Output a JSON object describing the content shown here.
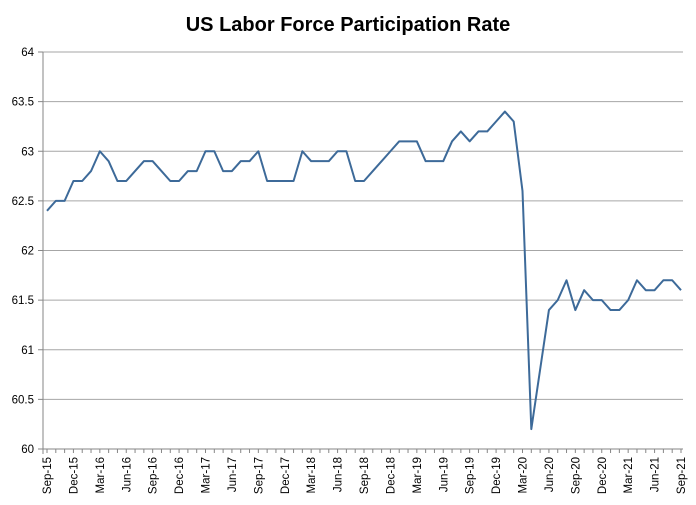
{
  "chart_data": {
    "type": "line",
    "title": "US Labor Force Participation Rate",
    "xlabel": "",
    "ylabel": "",
    "ylim": [
      60,
      64
    ],
    "yticks": [
      60,
      60.5,
      61,
      61.5,
      62,
      62.5,
      63,
      63.5,
      64
    ],
    "grid": true,
    "legend": "none",
    "colors": {
      "line": "#3d6a99",
      "grid": "#a6a6a6",
      "axis": "#868686"
    },
    "x": [
      "Sep-15",
      "Oct-15",
      "Nov-15",
      "Dec-15",
      "Jan-16",
      "Feb-16",
      "Mar-16",
      "Apr-16",
      "May-16",
      "Jun-16",
      "Jul-16",
      "Aug-16",
      "Sep-16",
      "Oct-16",
      "Nov-16",
      "Dec-16",
      "Jan-17",
      "Feb-17",
      "Mar-17",
      "Apr-17",
      "May-17",
      "Jun-17",
      "Jul-17",
      "Aug-17",
      "Sep-17",
      "Oct-17",
      "Nov-17",
      "Dec-17",
      "Jan-18",
      "Feb-18",
      "Mar-18",
      "Apr-18",
      "May-18",
      "Jun-18",
      "Jul-18",
      "Aug-18",
      "Sep-18",
      "Oct-18",
      "Nov-18",
      "Dec-18",
      "Jan-19",
      "Feb-19",
      "Mar-19",
      "Apr-19",
      "May-19",
      "Jun-19",
      "Jul-19",
      "Aug-19",
      "Sep-19",
      "Oct-19",
      "Nov-19",
      "Dec-19",
      "Jan-20",
      "Feb-20",
      "Mar-20",
      "Apr-20",
      "May-20",
      "Jun-20",
      "Jul-20",
      "Aug-20",
      "Sep-20",
      "Oct-20",
      "Nov-20",
      "Dec-20",
      "Jan-21",
      "Feb-21",
      "Mar-21",
      "Apr-21",
      "May-21",
      "Jun-21",
      "Jul-21",
      "Aug-21",
      "Sep-21"
    ],
    "xticks": [
      "Sep-15",
      "Dec-15",
      "Mar-16",
      "Jun-16",
      "Sep-16",
      "Dec-16",
      "Mar-17",
      "Jun-17",
      "Sep-17",
      "Dec-17",
      "Mar-18",
      "Jun-18",
      "Sep-18",
      "Dec-18",
      "Mar-19",
      "Jun-19",
      "Sep-19",
      "Dec-19",
      "Mar-20",
      "Jun-20",
      "Sep-20",
      "Dec-20",
      "Mar-21",
      "Jun-21",
      "Sep-21"
    ],
    "series": [
      {
        "values": [
          62.4,
          62.5,
          62.5,
          62.7,
          62.7,
          62.8,
          63.0,
          62.9,
          62.7,
          62.7,
          62.8,
          62.9,
          62.9,
          62.8,
          62.7,
          62.7,
          62.8,
          62.8,
          63.0,
          63.0,
          62.8,
          62.8,
          62.9,
          62.9,
          63.0,
          62.7,
          62.7,
          62.7,
          62.7,
          63.0,
          62.9,
          62.9,
          62.9,
          63.0,
          63.0,
          62.7,
          62.7,
          62.8,
          62.9,
          63.0,
          63.1,
          63.1,
          63.1,
          62.9,
          62.9,
          62.9,
          63.1,
          63.2,
          63.1,
          63.2,
          63.2,
          63.3,
          63.4,
          63.3,
          62.6,
          60.2,
          60.8,
          61.4,
          61.5,
          61.7,
          61.4,
          61.6,
          61.5,
          61.5,
          61.4,
          61.4,
          61.5,
          61.7,
          61.6,
          61.6,
          61.7,
          61.7,
          61.6
        ]
      }
    ]
  }
}
